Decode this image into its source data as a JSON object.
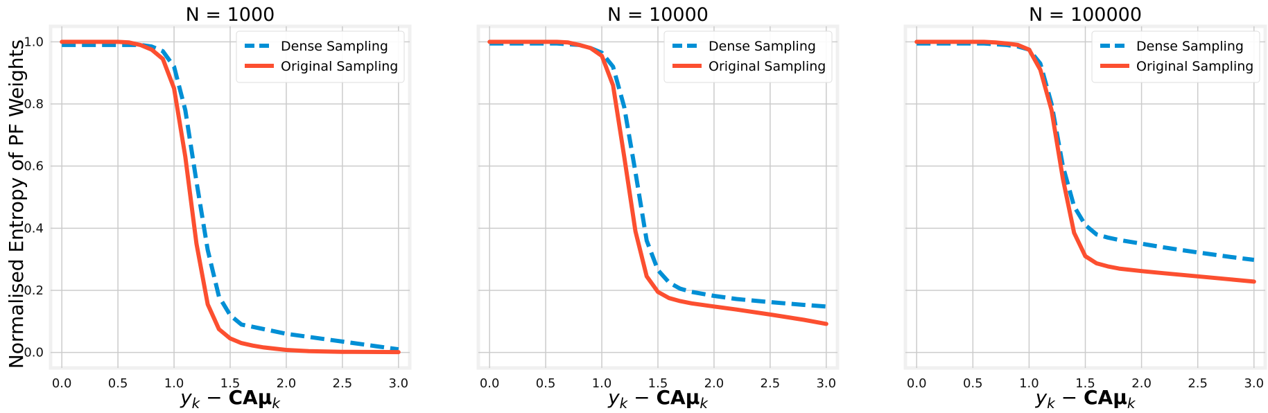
{
  "chart_data": [
    {
      "type": "line",
      "title": "N = 1000",
      "xlabel": "y_k − CAμ_k",
      "ylabel": "Normalised Entropy of PF Weights",
      "xlim": [
        -0.1,
        3.1
      ],
      "ylim": [
        -0.05,
        1.05
      ],
      "xticks": [
        "0.0",
        "0.5",
        "1.0",
        "1.5",
        "2.0",
        "2.5",
        "3.0"
      ],
      "yticks": [
        "0.0",
        "0.2",
        "0.4",
        "0.6",
        "0.8",
        "1.0"
      ],
      "grid": true,
      "legend": "top-right",
      "series": [
        {
          "name": "Dense Sampling",
          "color": "#008fd5",
          "style": "dashed",
          "x": [
            0,
            0.2,
            0.4,
            0.6,
            0.7,
            0.8,
            0.9,
            1.0,
            1.1,
            1.2,
            1.3,
            1.4,
            1.5,
            1.6,
            1.8,
            2.0,
            2.2,
            2.4,
            2.6,
            2.8,
            3.0
          ],
          "y": [
            0.99,
            0.99,
            0.99,
            0.99,
            0.99,
            0.985,
            0.97,
            0.92,
            0.78,
            0.55,
            0.33,
            0.18,
            0.12,
            0.09,
            0.075,
            0.06,
            0.05,
            0.04,
            0.03,
            0.02,
            0.01
          ]
        },
        {
          "name": "Original Sampling",
          "color": "#fc4f30",
          "style": "solid",
          "x": [
            0,
            0.2,
            0.4,
            0.5,
            0.6,
            0.7,
            0.8,
            0.9,
            1.0,
            1.1,
            1.2,
            1.3,
            1.4,
            1.5,
            1.6,
            1.7,
            1.8,
            2.0,
            2.2,
            2.5,
            3.0
          ],
          "y": [
            1.0,
            1.0,
            1.0,
            1.0,
            0.998,
            0.99,
            0.975,
            0.945,
            0.85,
            0.63,
            0.35,
            0.155,
            0.075,
            0.045,
            0.03,
            0.022,
            0.016,
            0.008,
            0.004,
            0.002,
            0.001
          ]
        }
      ]
    },
    {
      "type": "line",
      "title": "N = 10000",
      "xlabel": "y_k − CAμ_k",
      "ylabel": "",
      "xlim": [
        -0.1,
        3.1
      ],
      "ylim": [
        -0.05,
        1.05
      ],
      "xticks": [
        "0.0",
        "0.5",
        "1.0",
        "1.5",
        "2.0",
        "2.5",
        "3.0"
      ],
      "yticks": [],
      "grid": true,
      "legend": "top-right",
      "series": [
        {
          "name": "Dense Sampling",
          "color": "#008fd5",
          "style": "dashed",
          "x": [
            0,
            0.3,
            0.6,
            0.8,
            0.9,
            1.0,
            1.1,
            1.2,
            1.3,
            1.4,
            1.5,
            1.6,
            1.7,
            1.8,
            2.0,
            2.2,
            2.5,
            2.8,
            3.0
          ],
          "y": [
            0.995,
            0.995,
            0.995,
            0.99,
            0.98,
            0.965,
            0.92,
            0.79,
            0.58,
            0.36,
            0.265,
            0.225,
            0.205,
            0.195,
            0.182,
            0.172,
            0.162,
            0.153,
            0.148
          ]
        },
        {
          "name": "Original Sampling",
          "color": "#fc4f30",
          "style": "solid",
          "x": [
            0,
            0.3,
            0.6,
            0.7,
            0.8,
            0.9,
            1.0,
            1.1,
            1.2,
            1.3,
            1.4,
            1.5,
            1.6,
            1.7,
            1.8,
            2.0,
            2.2,
            2.5,
            2.8,
            3.0
          ],
          "y": [
            1.0,
            1.0,
            1.0,
            0.998,
            0.99,
            0.98,
            0.955,
            0.86,
            0.63,
            0.39,
            0.245,
            0.195,
            0.175,
            0.165,
            0.158,
            0.148,
            0.138,
            0.122,
            0.105,
            0.092
          ]
        }
      ]
    },
    {
      "type": "line",
      "title": "N = 100000",
      "xlabel": "y_k − CAμ_k",
      "ylabel": "",
      "xlim": [
        -0.1,
        3.1
      ],
      "ylim": [
        -0.05,
        1.05
      ],
      "xticks": [
        "0.0",
        "0.5",
        "1.0",
        "1.5",
        "2.0",
        "2.5",
        "3.0"
      ],
      "yticks": [],
      "grid": true,
      "legend": "top-right",
      "series": [
        {
          "name": "Dense Sampling",
          "color": "#008fd5",
          "style": "dashed",
          "x": [
            0,
            0.3,
            0.6,
            0.8,
            0.9,
            1.0,
            1.1,
            1.2,
            1.3,
            1.4,
            1.5,
            1.6,
            1.7,
            1.8,
            2.0,
            2.2,
            2.5,
            2.8,
            3.0
          ],
          "y": [
            0.995,
            0.995,
            0.995,
            0.99,
            0.985,
            0.975,
            0.93,
            0.8,
            0.6,
            0.47,
            0.41,
            0.38,
            0.37,
            0.362,
            0.35,
            0.338,
            0.322,
            0.307,
            0.298
          ]
        },
        {
          "name": "Original Sampling",
          "color": "#fc4f30",
          "style": "solid",
          "x": [
            0,
            0.3,
            0.6,
            0.7,
            0.8,
            0.9,
            1.0,
            1.1,
            1.2,
            1.3,
            1.4,
            1.5,
            1.6,
            1.7,
            1.8,
            2.0,
            2.2,
            2.5,
            2.8,
            3.0
          ],
          "y": [
            1.0,
            1.0,
            1.0,
            0.998,
            0.995,
            0.99,
            0.975,
            0.91,
            0.78,
            0.56,
            0.385,
            0.31,
            0.287,
            0.277,
            0.27,
            0.262,
            0.255,
            0.245,
            0.235,
            0.228
          ]
        }
      ]
    }
  ]
}
